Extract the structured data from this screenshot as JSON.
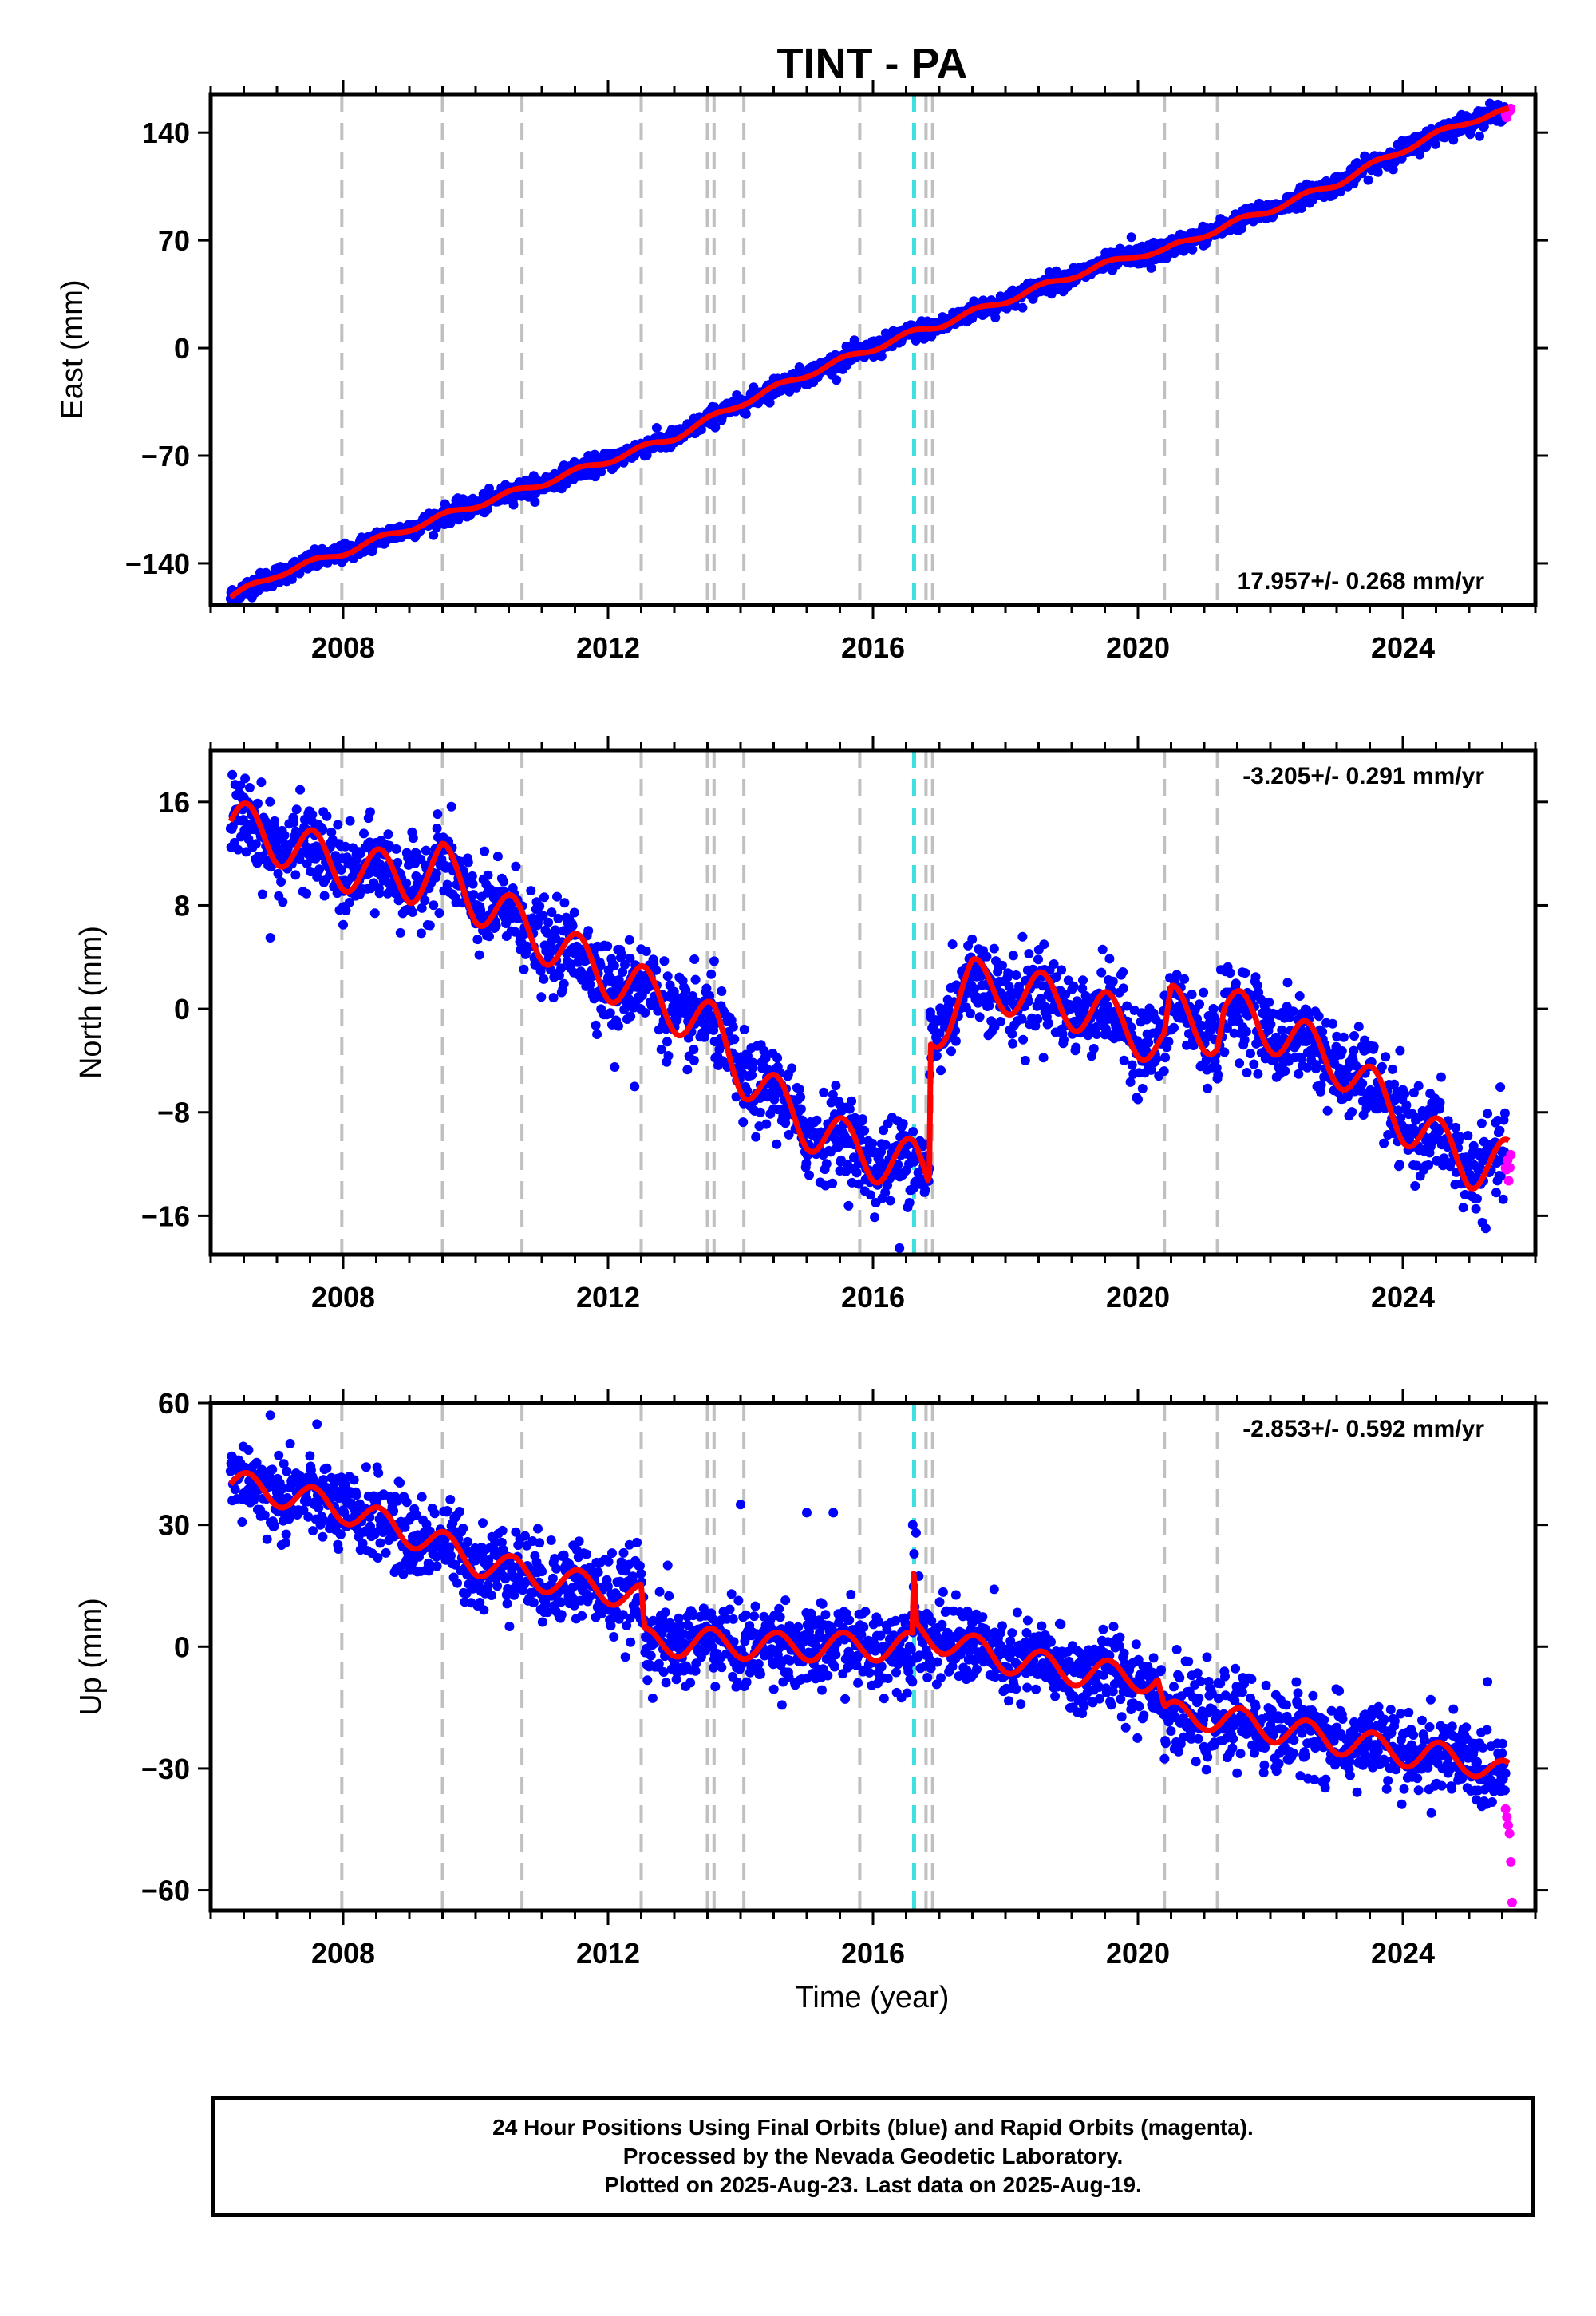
{
  "figure_title": "TINT - PA",
  "xlabel": "Time (year)",
  "colors": {
    "final_orbits": "#0000ff",
    "rapid_orbits": "#ff00ff",
    "model": "#ff0000",
    "equipment_change": "#c0c0c0",
    "earthquake": "#40e0e0"
  },
  "footer": {
    "line1": "24 Hour Positions Using Final Orbits (blue) and Rapid Orbits (magenta).",
    "line2": "Processed by the Nevada Geodetic Laboratory.",
    "line3": "Plotted on 2025-Aug-23. Last data on 2025-Aug-19."
  },
  "chart_data": [
    {
      "type": "scatter",
      "ylabel": "East (mm)",
      "rate_label": "17.957+/- 0.268 mm/yr",
      "xlim": [
        2006.0,
        2026.0
      ],
      "ylim": [
        -167,
        165
      ],
      "xticks": [
        2008,
        2012,
        2016,
        2020,
        2024
      ],
      "yticks": [
        -140,
        -70,
        0,
        70,
        140
      ],
      "ytick_labels": [
        "−140",
        "−70",
        "0",
        "70",
        "140"
      ],
      "vlines_gray": [
        2007.98,
        2009.5,
        2010.7,
        2012.5,
        2013.5,
        2013.6,
        2014.05,
        2015.8,
        2016.8,
        2016.9,
        2020.4,
        2021.2
      ],
      "vlines_cyan": [
        2016.62
      ],
      "data_start": 2006.3,
      "data_end": 2025.55,
      "rapid_start": 2025.55,
      "rapid_end": 2025.63,
      "model": [
        [
          2006.3,
          -162
        ],
        [
          2007.0,
          -147
        ],
        [
          2008.0,
          -133
        ],
        [
          2009.0,
          -117
        ],
        [
          2010.0,
          -102
        ],
        [
          2011.0,
          -88
        ],
        [
          2012.0,
          -73
        ],
        [
          2013.0,
          -58
        ],
        [
          2014.0,
          -36
        ],
        [
          2015.0,
          -17
        ],
        [
          2016.0,
          0
        ],
        [
          2016.62,
          10
        ],
        [
          2017.0,
          15
        ],
        [
          2018.0,
          31
        ],
        [
          2019.0,
          47
        ],
        [
          2020.0,
          61
        ],
        [
          2020.4,
          63
        ],
        [
          2021.0,
          74
        ],
        [
          2022.0,
          90
        ],
        [
          2023.0,
          107
        ],
        [
          2024.0,
          129
        ],
        [
          2025.0,
          148
        ],
        [
          2025.6,
          154
        ]
      ],
      "spread": 3.0,
      "seasonal": 2.0,
      "outliers": [
        [
          2019.9,
          72
        ],
        [
          2020.2,
          52
        ]
      ]
    },
    {
      "type": "scatter",
      "ylabel": "North (mm)",
      "rate_label": "-3.205+/- 0.291 mm/yr",
      "xlim": [
        2006.0,
        2026.0
      ],
      "ylim": [
        -19,
        20
      ],
      "xticks": [
        2008,
        2012,
        2016,
        2020,
        2024
      ],
      "yticks": [
        -16,
        -8,
        0,
        8,
        16
      ],
      "ytick_labels": [
        "−16",
        "−8",
        "0",
        "8",
        "16"
      ],
      "vlines_gray": [
        2007.98,
        2009.5,
        2010.7,
        2012.5,
        2013.5,
        2013.6,
        2014.05,
        2015.8,
        2016.8,
        2016.9,
        2020.4,
        2021.2
      ],
      "vlines_cyan": [
        2016.62
      ],
      "data_start": 2006.3,
      "data_end": 2025.55,
      "rapid_start": 2025.55,
      "rapid_end": 2025.63,
      "model": [
        [
          2006.3,
          14.5
        ],
        [
          2007.0,
          13
        ],
        [
          2008.0,
          11
        ],
        [
          2009.0,
          10
        ],
        [
          2009.5,
          11
        ],
        [
          2010.0,
          8.5
        ],
        [
          2011.0,
          5.5
        ],
        [
          2012.0,
          2.5
        ],
        [
          2012.5,
          1.5
        ],
        [
          2013.0,
          0
        ],
        [
          2013.6,
          -1.5
        ],
        [
          2014.05,
          -5
        ],
        [
          2015.0,
          -9
        ],
        [
          2016.0,
          -11.5
        ],
        [
          2016.62,
          -12
        ],
        [
          2016.85,
          -13
        ],
        [
          2016.86,
          -2
        ],
        [
          2017.5,
          2
        ],
        [
          2018.5,
          1
        ],
        [
          2019.5,
          -0.5
        ],
        [
          2020.4,
          -3
        ],
        [
          2020.5,
          0
        ],
        [
          2021.2,
          -2
        ],
        [
          2021.3,
          0
        ],
        [
          2022.0,
          -1.5
        ],
        [
          2023.0,
          -4
        ],
        [
          2024.0,
          -8.5
        ],
        [
          2025.0,
          -12
        ],
        [
          2025.6,
          -12
        ]
      ],
      "spread": 1.6,
      "seasonal": 1.9,
      "outliers": [
        [
          2006.9,
          5.5
        ],
        [
          2008.0,
          6.5
        ],
        [
          2012.1,
          -4.5
        ],
        [
          2012.4,
          -6
        ],
        [
          2013.3,
          -4
        ],
        [
          2014.3,
          -8
        ],
        [
          2016.4,
          -18.5
        ],
        [
          2017.2,
          5
        ],
        [
          2018.3,
          -4
        ],
        [
          2020.0,
          -7
        ]
      ]
    },
    {
      "type": "scatter",
      "ylabel": "Up (mm)",
      "rate_label": "-2.853+/- 0.592 mm/yr",
      "xlim": [
        2006.0,
        2026.0
      ],
      "ylim": [
        -65,
        60
      ],
      "xticks": [
        2008,
        2012,
        2016,
        2020,
        2024
      ],
      "yticks": [
        -60,
        -30,
        0,
        30,
        60
      ],
      "ytick_labels": [
        "−60",
        "−30",
        "0",
        "30",
        "60"
      ],
      "vlines_gray": [
        2007.98,
        2009.5,
        2010.7,
        2012.5,
        2013.5,
        2013.6,
        2014.05,
        2015.8,
        2016.8,
        2016.9,
        2020.4,
        2021.2
      ],
      "vlines_cyan": [
        2016.62
      ],
      "data_start": 2006.3,
      "data_end": 2025.55,
      "rapid_start": 2025.55,
      "rapid_end": 2025.63,
      "model": [
        [
          2006.3,
          40
        ],
        [
          2007.0,
          38
        ],
        [
          2008.0,
          34
        ],
        [
          2009.0,
          28
        ],
        [
          2009.5,
          25
        ],
        [
          2010.0,
          21
        ],
        [
          2011.0,
          17
        ],
        [
          2012.0,
          14
        ],
        [
          2012.5,
          12
        ],
        [
          2012.55,
          1
        ],
        [
          2013.5,
          1
        ],
        [
          2014.5,
          0
        ],
        [
          2015.5,
          0
        ],
        [
          2016.5,
          0
        ],
        [
          2016.6,
          0
        ],
        [
          2016.62,
          20
        ],
        [
          2016.65,
          3
        ],
        [
          2017.0,
          2
        ],
        [
          2018.0,
          -3
        ],
        [
          2019.0,
          -6
        ],
        [
          2020.3,
          -8
        ],
        [
          2020.4,
          -17
        ],
        [
          2021.0,
          -17
        ],
        [
          2022.0,
          -20
        ],
        [
          2023.0,
          -23
        ],
        [
          2024.0,
          -26
        ],
        [
          2025.0,
          -28
        ],
        [
          2025.6,
          -32
        ]
      ],
      "spread": 5.0,
      "seasonal": 3.5,
      "outliers": [
        [
          2006.9,
          57
        ],
        [
          2007.2,
          50
        ],
        [
          2012.9,
          20
        ],
        [
          2014.0,
          35
        ],
        [
          2015.0,
          33
        ],
        [
          2015.4,
          33
        ],
        [
          2016.6,
          30
        ],
        [
          2016.65,
          28
        ]
      ],
      "rapid_points": [
        -40,
        -42,
        -44,
        -46,
        -53,
        -63
      ]
    }
  ]
}
